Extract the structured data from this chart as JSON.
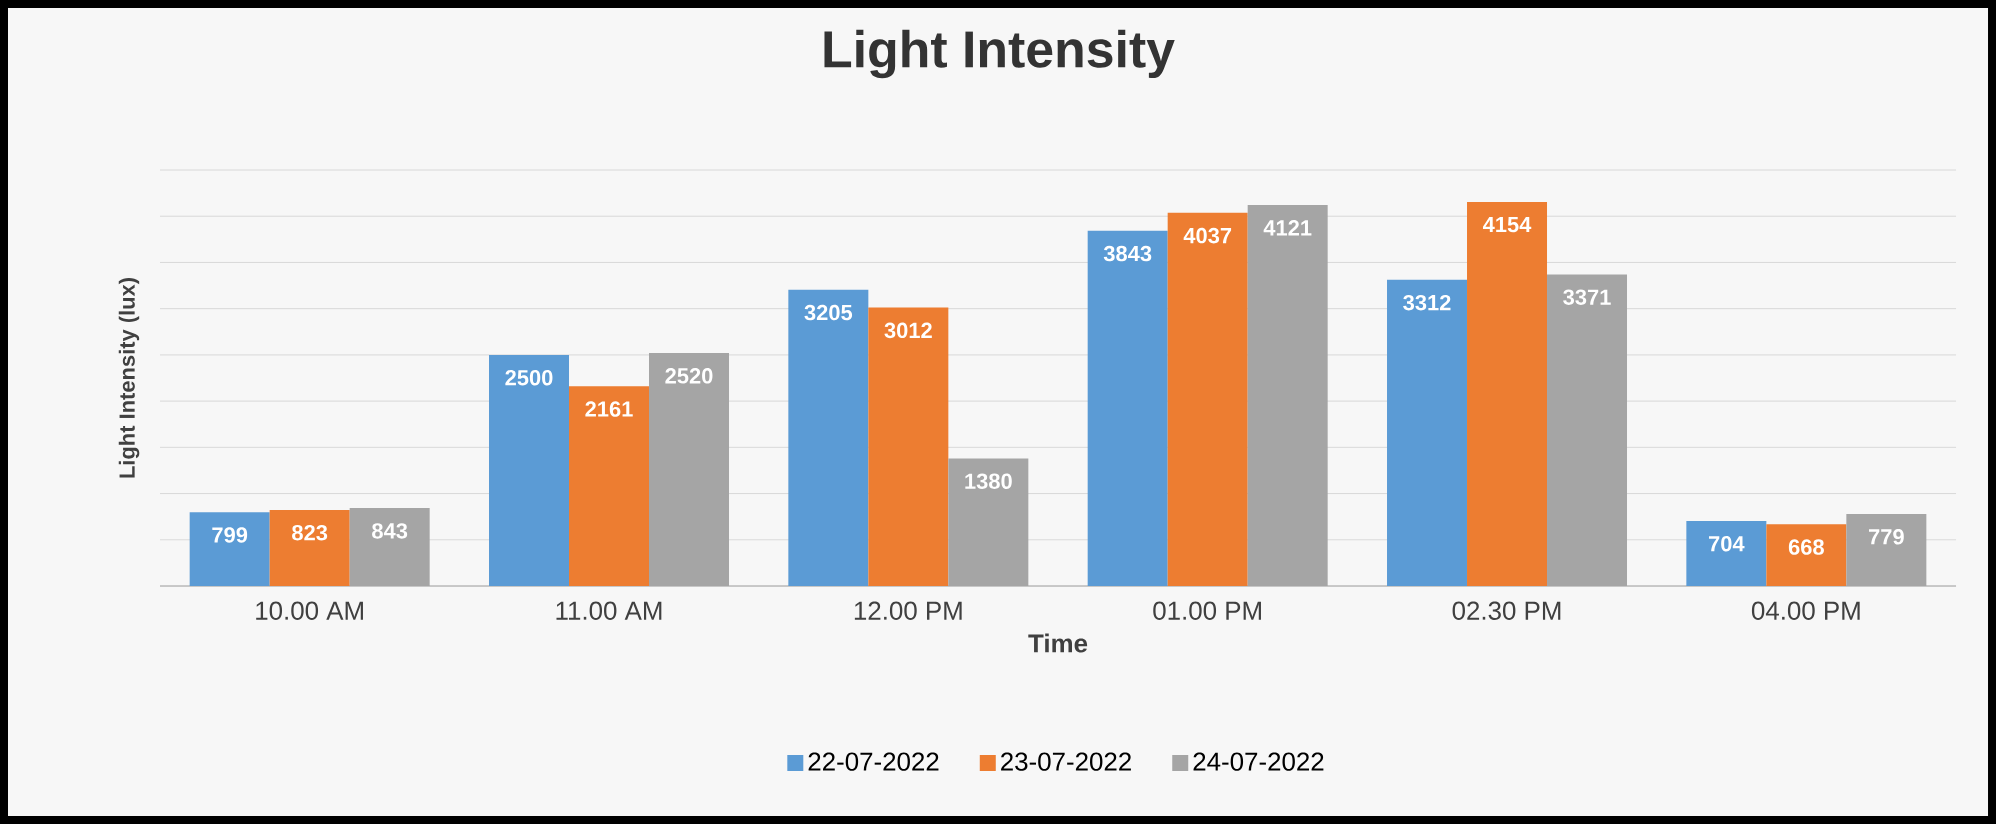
{
  "chart_data": {
    "type": "bar",
    "title": "Light Intensity",
    "xlabel": "Time",
    "ylabel": "Light Intensity (lux)",
    "categories": [
      "10.00 AM",
      "11.00 AM",
      "12.00 PM",
      "01.00 PM",
      "02.30 PM",
      "04.00 PM"
    ],
    "series": [
      {
        "name": "22-07-2022",
        "color": "#5b9bd5",
        "values": [
          799,
          2500,
          3205,
          3843,
          3312,
          704
        ]
      },
      {
        "name": "23-07-2022",
        "color": "#ed7d31",
        "values": [
          823,
          2161,
          3012,
          4037,
          4154,
          668
        ]
      },
      {
        "name": "24-07-2022",
        "color": "#a5a5a5",
        "values": [
          843,
          2520,
          1380,
          4121,
          3371,
          779
        ]
      }
    ],
    "ylim": [
      0,
      4500
    ],
    "yticks": [
      {
        "value": 0,
        "label": null
      },
      {
        "value": 500,
        "label": null
      },
      {
        "value": 1000,
        "label": null
      },
      {
        "value": 1500,
        "label": null
      },
      {
        "value": 2000,
        "label": null
      },
      {
        "value": 2500,
        "label": null
      },
      {
        "value": 3000,
        "label": null
      },
      {
        "value": 3500,
        "label": null
      },
      {
        "value": 4000,
        "label": null
      },
      {
        "value": 4500,
        "label": null
      }
    ],
    "tick_labels": "x",
    "grid": "y",
    "legend": "bottom",
    "data_labels": true
  }
}
